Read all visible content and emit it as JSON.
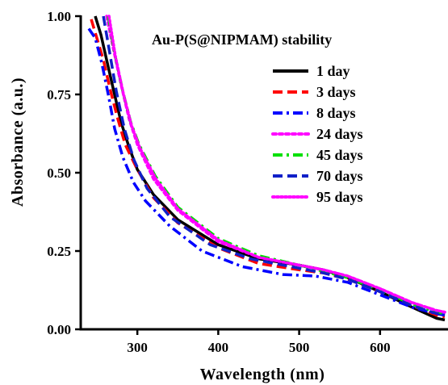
{
  "chart_data": {
    "type": "line",
    "title": "",
    "legend_title": "Au-P(S@NIPMAM) stability",
    "xlabel": "Wavelength (nm)",
    "ylabel": "Absorbance (a.u.)",
    "xlim": [
      230,
      680
    ],
    "ylim": [
      0,
      1
    ],
    "xticks": [
      300,
      400,
      500,
      600
    ],
    "yticks": [
      0.0,
      0.25,
      0.5,
      0.75,
      1.0
    ],
    "xtick_labels": [
      "300",
      "400",
      "500",
      "600"
    ],
    "ytick_labels": [
      "0.00",
      "0.25",
      "0.50",
      "0.75",
      "1.00"
    ],
    "grid": false,
    "legend_position": "top-right",
    "series": [
      {
        "name": "1 day",
        "color": "#000000",
        "dash": "solid",
        "x": [
          248,
          255,
          262,
          270,
          280,
          290,
          300,
          320,
          350,
          400,
          450,
          500,
          530,
          560,
          600,
          640,
          670,
          680
        ],
        "y": [
          1.0,
          0.94,
          0.86,
          0.77,
          0.66,
          0.58,
          0.51,
          0.43,
          0.35,
          0.27,
          0.225,
          0.205,
          0.19,
          0.165,
          0.12,
          0.07,
          0.035,
          0.03
        ]
      },
      {
        "name": "3 days",
        "color": "#ff0000",
        "dash": "dash",
        "x": [
          243,
          250,
          258,
          266,
          275,
          285,
          300,
          320,
          350,
          400,
          450,
          500,
          530,
          560,
          600,
          640,
          670,
          680
        ],
        "y": [
          0.99,
          0.93,
          0.86,
          0.77,
          0.68,
          0.59,
          0.51,
          0.42,
          0.34,
          0.26,
          0.21,
          0.19,
          0.18,
          0.16,
          0.12,
          0.075,
          0.045,
          0.04
        ]
      },
      {
        "name": "8 days",
        "color": "#0000ff",
        "dash": "dashdot",
        "x": [
          240,
          248,
          256,
          264,
          272,
          282,
          295,
          310,
          340,
          380,
          430,
          480,
          520,
          560,
          600,
          640,
          670,
          680
        ],
        "y": [
          0.96,
          0.93,
          0.85,
          0.75,
          0.64,
          0.55,
          0.47,
          0.41,
          0.33,
          0.25,
          0.2,
          0.175,
          0.17,
          0.15,
          0.11,
          0.07,
          0.05,
          0.045
        ]
      },
      {
        "name": "24 days",
        "color": "#ff00ff",
        "dash": "dot",
        "x": [
          262,
          270,
          280,
          290,
          300,
          320,
          350,
          400,
          450,
          500,
          530,
          560,
          600,
          640,
          670,
          680
        ],
        "y": [
          1.0,
          0.9,
          0.78,
          0.67,
          0.59,
          0.48,
          0.38,
          0.28,
          0.23,
          0.205,
          0.19,
          0.17,
          0.13,
          0.085,
          0.06,
          0.055
        ]
      },
      {
        "name": "45 days",
        "color": "#00e000",
        "dash": "dashdot",
        "x": [
          264,
          272,
          282,
          292,
          302,
          322,
          350,
          400,
          450,
          500,
          530,
          560,
          600,
          640,
          670,
          680
        ],
        "y": [
          1.0,
          0.88,
          0.76,
          0.66,
          0.59,
          0.49,
          0.39,
          0.29,
          0.235,
          0.205,
          0.185,
          0.165,
          0.125,
          0.08,
          0.055,
          0.05
        ]
      },
      {
        "name": "70 days",
        "color": "#1020c8",
        "dash": "dash",
        "x": [
          258,
          266,
          274,
          284,
          296,
          312,
          340,
          390,
          440,
          490,
          530,
          560,
          600,
          640,
          670,
          680
        ],
        "y": [
          1.0,
          0.88,
          0.76,
          0.64,
          0.54,
          0.45,
          0.36,
          0.27,
          0.225,
          0.2,
          0.18,
          0.16,
          0.12,
          0.075,
          0.05,
          0.045
        ]
      },
      {
        "name": "95 days",
        "color": "#ff00ff",
        "dash": "dotted",
        "x": [
          265,
          273,
          283,
          293,
          303,
          323,
          350,
          400,
          450,
          500,
          530,
          560,
          600,
          640,
          670,
          680
        ],
        "y": [
          1.0,
          0.87,
          0.75,
          0.65,
          0.58,
          0.48,
          0.385,
          0.285,
          0.23,
          0.205,
          0.19,
          0.17,
          0.13,
          0.085,
          0.06,
          0.055
        ]
      }
    ]
  }
}
